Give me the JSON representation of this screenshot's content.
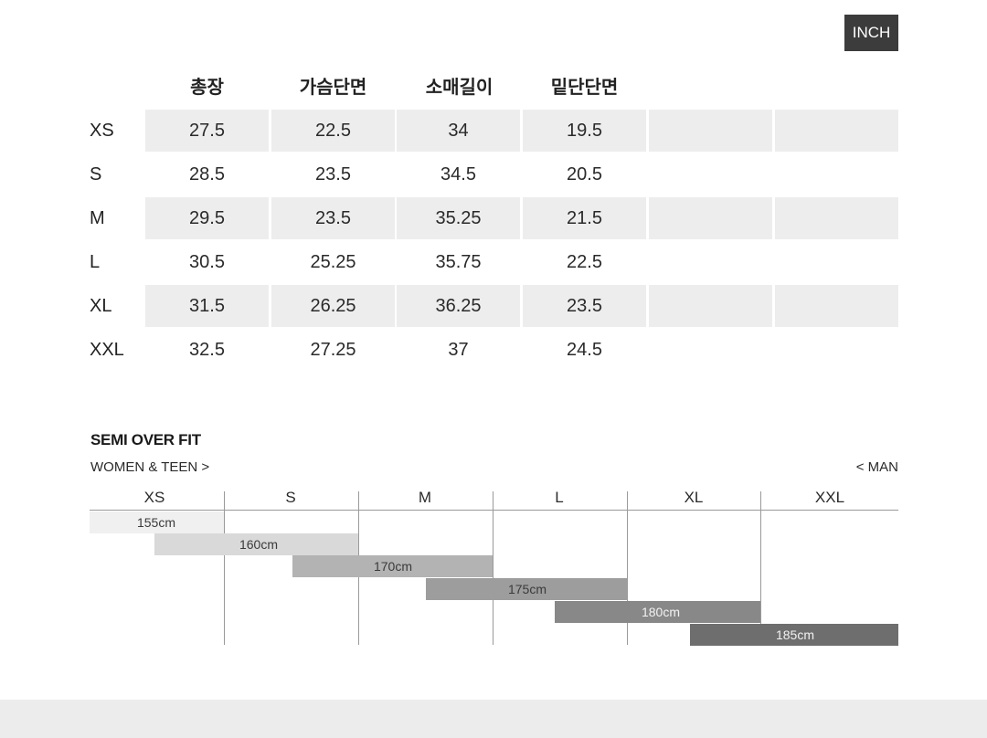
{
  "unit_badge": "INCH",
  "table": {
    "columns": [
      "총장",
      "가슴단면",
      "소매길이",
      "밑단단면"
    ],
    "rows": [
      {
        "size": "XS",
        "values": [
          "27.5",
          "22.5",
          "34",
          "19.5"
        ]
      },
      {
        "size": "S",
        "values": [
          "28.5",
          "23.5",
          "34.5",
          "20.5"
        ]
      },
      {
        "size": "M",
        "values": [
          "29.5",
          "23.5",
          "35.25",
          "21.5"
        ]
      },
      {
        "size": "L",
        "values": [
          "30.5",
          "25.25",
          "35.75",
          "22.5"
        ]
      },
      {
        "size": "XL",
        "values": [
          "31.5",
          "26.25",
          "36.25",
          "23.5"
        ]
      },
      {
        "size": "XXL",
        "values": [
          "32.5",
          "27.25",
          "37",
          "24.5"
        ]
      }
    ]
  },
  "fit_guide": {
    "title": "SEMI OVER FIT",
    "left_label": "WOMEN & TEEN >",
    "right_label": "< MAN",
    "sizes": [
      "XS",
      "S",
      "M",
      "L",
      "XL",
      "XXL"
    ],
    "bars": [
      {
        "label": "155cm",
        "color": "#f0f0f0"
      },
      {
        "label": "160cm",
        "color": "#d9d9d9"
      },
      {
        "label": "170cm",
        "color": "#b3b3b3"
      },
      {
        "label": "175cm",
        "color": "#9d9d9d"
      },
      {
        "label": "180cm",
        "color": "#888888"
      },
      {
        "label": "185cm",
        "color": "#6e6e6e"
      }
    ]
  }
}
